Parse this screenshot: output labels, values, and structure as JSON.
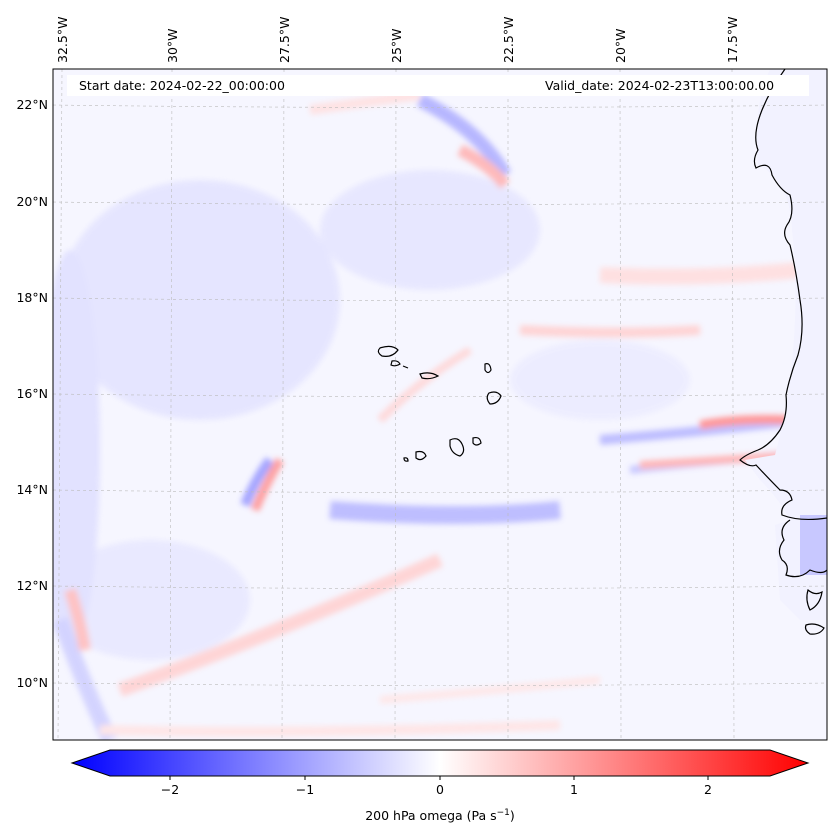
{
  "map": {
    "start_date": "Start date: 2024-02-22_00:00:00",
    "valid_date": "Valid_date: 2024-02-23T13:00:00.00",
    "lon_labels": [
      "32.5°W",
      "30°W",
      "27.5°W",
      "25°W",
      "22.5°W",
      "20°W",
      "17.5°W"
    ],
    "lat_labels": [
      "22°N",
      "20°N",
      "18°N",
      "16°N",
      "14°N",
      "12°N",
      "10°N"
    ],
    "extent": {
      "lon_min": -33.0,
      "lon_max": -15.6,
      "lat_min": 8.8,
      "lat_max": 22.7
    }
  },
  "colorbar": {
    "label_prefix": "200 hPa omega (Pa s",
    "label_exp": "−1",
    "label_suffix": ")",
    "ticks": [
      "−2",
      "−1",
      "0",
      "1",
      "2"
    ],
    "range": [
      -2.6,
      2.6
    ],
    "cmap": "bwr",
    "colors": {
      "min": "#0000ff",
      "mid": "#ffffff",
      "max": "#ff0000"
    }
  }
}
